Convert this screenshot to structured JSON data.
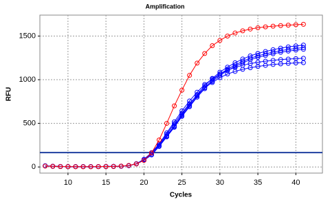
{
  "chart_data": {
    "type": "line",
    "title": "Amplification",
    "x_label": "Cycles",
    "y_label": "RFU",
    "x": [
      7,
      8,
      9,
      10,
      11,
      12,
      13,
      14,
      15,
      16,
      17,
      18,
      19,
      20,
      21,
      22,
      23,
      24,
      25,
      26,
      27,
      28,
      29,
      30,
      31,
      32,
      33,
      34,
      35,
      36,
      37,
      38,
      39,
      40,
      41
    ],
    "series": [
      {
        "color": "#ff0000",
        "values": [
          10,
          8,
          5,
          4,
          3,
          3,
          3,
          4,
          5,
          6,
          10,
          18,
          35,
          75,
          160,
          310,
          500,
          700,
          880,
          1050,
          1190,
          1300,
          1390,
          1450,
          1500,
          1535,
          1560,
          1580,
          1595,
          1605,
          1613,
          1620,
          1625,
          1630,
          1635
        ]
      },
      {
        "color": "#0000ff",
        "values": [
          14,
          9,
          6,
          4,
          4,
          4,
          4,
          4,
          6,
          7,
          10,
          17,
          36,
          79,
          143,
          243,
          358,
          472,
          601,
          715,
          829,
          930,
          1015,
          1087,
          1144,
          1194,
          1237,
          1273,
          1301,
          1323,
          1344,
          1361,
          1376,
          1387,
          1397
        ]
      },
      {
        "color": "#0000ff",
        "values": [
          14,
          8,
          6,
          4,
          4,
          4,
          4,
          4,
          6,
          7,
          10,
          17,
          35,
          77,
          140,
          238,
          350,
          462,
          588,
          700,
          812,
          910,
          994,
          1064,
          1120,
          1169,
          1211,
          1246,
          1274,
          1295,
          1316,
          1333,
          1347,
          1358,
          1368
        ]
      },
      {
        "color": "#0000ff",
        "values": [
          14,
          8,
          6,
          4,
          4,
          4,
          4,
          4,
          6,
          7,
          10,
          17,
          35,
          76,
          138,
          235,
          345,
          455,
          580,
          690,
          800,
          897,
          980,
          1049,
          1104,
          1152,
          1194,
          1228,
          1256,
          1277,
          1297,
          1314,
          1328,
          1339,
          1348
        ]
      },
      {
        "color": "#0000ff",
        "values": [
          13,
          8,
          5,
          4,
          4,
          4,
          4,
          4,
          5,
          6,
          9,
          15,
          38,
          88,
          164,
          265,
          391,
          517,
          643,
          756,
          857,
          945,
          1008,
          1065,
          1109,
          1140,
          1166,
          1184,
          1200,
          1212,
          1222,
          1230,
          1236,
          1241,
          1245
        ]
      },
      {
        "color": "#0000ff",
        "values": [
          12,
          7,
          5,
          4,
          4,
          4,
          4,
          4,
          5,
          6,
          8,
          15,
          36,
          85,
          157,
          254,
          375,
          496,
          617,
          726,
          823,
          908,
          968,
          1022,
          1065,
          1095,
          1119,
          1137,
          1152,
          1164,
          1174,
          1181,
          1187,
          1192,
          1195
        ]
      }
    ],
    "threshold": 165,
    "threshold_color": "#1f3f9f",
    "xlim": [
      6.3,
      43.5
    ],
    "ylim": [
      -70,
      1740
    ],
    "xticks": [
      10,
      15,
      20,
      25,
      30,
      35,
      40
    ],
    "yticks": [
      0,
      500,
      1000,
      1500
    ],
    "grid": true
  }
}
